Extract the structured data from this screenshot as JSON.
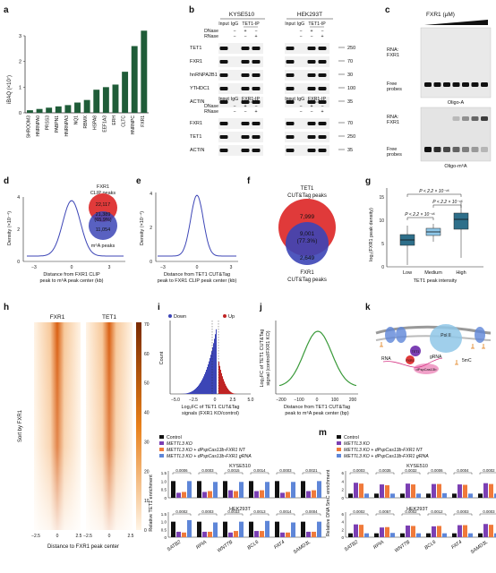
{
  "colors": {
    "green": "#1f5c38",
    "red": "#e03a3a",
    "blue": "#3c45b6",
    "purple": "#7b3fb3",
    "ctrl": "#111111",
    "sgnt": "#f07a3a",
    "gr": "#5e86d8",
    "teal": "#2e6f8a",
    "lgreen": "#3a9a3a",
    "heat": "#d96a10",
    "lblue": "#8fc7e8"
  },
  "panel_letters": [
    "a",
    "b",
    "c",
    "d",
    "e",
    "f",
    "g",
    "h",
    "i",
    "j",
    "k",
    "l",
    "m"
  ],
  "panel_a": {
    "ylabel": "iBAQ (×10⁷)",
    "chart_data": {
      "type": "bar",
      "categories": [
        "SHROOM3",
        "HNRNPA0",
        "PRSS3",
        "PABPN1",
        "HNRNPA3",
        "NQ1",
        "RBMX",
        "HSPA8",
        "EEF1A3",
        "ERH",
        "CLTC",
        "HNRNPC",
        "FXR1"
      ],
      "values": [
        0.1,
        0.15,
        0.2,
        0.25,
        0.3,
        0.4,
        0.5,
        0.9,
        1.0,
        1.1,
        1.6,
        2.6,
        3.2
      ],
      "ylim": [
        0,
        3
      ],
      "yticks": [
        0,
        1,
        2,
        3
      ]
    }
  },
  "panel_b": {
    "cells": [
      "KYSE510",
      "HEK293T"
    ],
    "top": {
      "lanes": [
        "Input",
        "IgG",
        "TET1-IP"
      ],
      "dnase": [
        "−",
        "+",
        "−"
      ],
      "rnase": [
        "−",
        "−",
        "+"
      ],
      "rows": [
        "TET1",
        "FXR1",
        "hnRNPA2B1",
        "YTHDC1",
        "ACTIN"
      ],
      "mw": [
        "250",
        "70",
        "30",
        "100",
        "35"
      ]
    },
    "bottom": {
      "lanes": [
        "Input",
        "IgG",
        "FXR1-IP"
      ],
      "dnase": [
        "−",
        "+",
        "−"
      ],
      "rnase": [
        "−",
        "−",
        "+"
      ],
      "rows": [
        "FXR1",
        "TET1",
        "ACTIN"
      ],
      "mw": [
        "70",
        "250",
        "35"
      ]
    },
    "labels": {
      "dnase": "DNase",
      "rnase": "RNase"
    }
  },
  "panel_c": {
    "title": "FXR1 (µM)",
    "rna_label": "RNA:",
    "fxr1": "FXR1",
    "free": "Free",
    "probes": "probes",
    "gel1": "Oligo-A",
    "gel2": "Oligo-m⁶A"
  },
  "panel_d": {
    "ylabel": "Density (×10⁻⁴)",
    "xlabel1": "Distance from FXR1 CLIP",
    "xlabel2": "peak to m⁶A peak center (kb)",
    "xticks": [
      "−3",
      "0",
      "3"
    ],
    "yticks": [
      "0",
      "2",
      "4"
    ],
    "venn_title1": "FXR1",
    "venn_title2": "CLIP peaks",
    "n_top": "22,117",
    "n_mid": "21,389",
    "pct_mid": "(65.9%)",
    "n_bot": "11,054",
    "venn_bottom": "m⁶A peaks"
  },
  "panel_e": {
    "ylabel": "Density (×10⁻⁴)",
    "xlabel1": "Distance from TET1 CUT&Tag",
    "xlabel2": "peak to FXR1 CLIP peak center (kb)",
    "xticks": [
      "−3",
      "0",
      "3"
    ],
    "yticks": [
      "0",
      "2",
      "4"
    ]
  },
  "panel_f": {
    "title1": "TET1",
    "title2": "CUT&Tag peaks",
    "n_top": "7,999",
    "n_mid": "9,001",
    "pct_mid": "(77.3%)",
    "n_bot": "2,649",
    "bottom1": "FXR1",
    "bottom2": "CUT&Tag peaks"
  },
  "panel_g": {
    "ylabel": "log₂(FXR1 peak density)",
    "xlabel": "TET1 peak intensity",
    "categories": [
      "Low",
      "Medium",
      "High"
    ],
    "pvals": [
      "P < 2.2 × 10⁻¹⁶",
      "P < 2.2 × 10⁻¹⁶",
      "P < 2.2 × 10⁻¹⁶"
    ],
    "yticks": [
      "0",
      "5",
      "10",
      "15"
    ]
  },
  "panel_h": {
    "col1": "FXR1",
    "col2": "TET1",
    "ylabel": "Sort by FXR1",
    "xlabel": "Distance to FXR1 peak center",
    "xticks": [
      "−2.5",
      "0",
      "2.5",
      "−2.5",
      "0",
      "2.5"
    ],
    "scale": [
      "70",
      "60",
      "50",
      "40",
      "30",
      "20",
      "10",
      "0"
    ]
  },
  "panel_i": {
    "legend_down": "Down",
    "legend_up": "Up",
    "ylabel": "Count",
    "xlabel1": "Log₂FC of TET1 CUT&Tag",
    "xlabel2": "signals (FXR1 KO/control)",
    "xticks": [
      "−5.0",
      "−2.5",
      "0",
      "2.5",
      "5.0"
    ]
  },
  "panel_j": {
    "ylabel1": "Log₂FC of TET1 CUT&Tag",
    "ylabel2": "signal (control/FXR1 KO)",
    "xlabel1": "Distance from TET1 CUT&Tag",
    "xlabel2": "peak to m⁶A peak center (bp)",
    "xticks": [
      "−200",
      "−100",
      "0",
      "100",
      "200"
    ]
  },
  "panel_k": {
    "pol": "Pol II",
    "grna": "gRNA",
    "rna": "RNA",
    "dcas": "dPspCas13b",
    "fxr1": "FXR1",
    "tet1": "TET1",
    "mc": "5mC"
  },
  "panel_l": {
    "legend": [
      "Control",
      "METTL3 KO",
      "METTL3 KO + dPspCas13b-FXR1 NT",
      "METTL3 KO + dPspCas13b-FXR1 gRNA"
    ],
    "ylabel": "Relative TET1 enrichment",
    "cell1": "KYSE510",
    "cell2": "HEK293T",
    "genes": [
      "SATB2",
      "RPIA",
      "WNT7B",
      "BCL6",
      "FAT4",
      "SAMD3L"
    ],
    "pvals_top": [
      "0.0006",
      "0.0003",
      "0.0015",
      "0.0014",
      "0.0003",
      "0.0021"
    ],
    "pvals_bot": [
      "0.0002",
      "0.0003",
      "0.0033",
      "0.0013",
      "0.0014",
      "0.0004"
    ],
    "chart_data": {
      "type": "bar",
      "series": [
        {
          "name": "Control",
          "top": [
            1.0,
            1.0,
            1.0,
            1.0,
            1.0,
            1.0
          ],
          "bot": [
            1.0,
            1.0,
            1.0,
            1.0,
            1.0,
            1.0
          ]
        },
        {
          "name": "METTL3 KO",
          "top": [
            0.3,
            0.35,
            0.45,
            0.4,
            0.3,
            0.4
          ],
          "bot": [
            0.35,
            0.35,
            0.3,
            0.4,
            0.3,
            0.35
          ]
        },
        {
          "name": "METTL3 KO + dPspCas13b-FXR1 NT",
          "top": [
            0.35,
            0.4,
            0.4,
            0.45,
            0.35,
            0.45
          ],
          "bot": [
            0.3,
            0.35,
            0.4,
            0.4,
            0.3,
            0.35
          ]
        },
        {
          "name": "METTL3 KO + dPspCas13b-FXR1 gRNA",
          "top": [
            1.0,
            0.95,
            0.95,
            0.95,
            0.95,
            1.0
          ],
          "bot": [
            1.1,
            0.95,
            1.0,
            1.05,
            0.95,
            1.0
          ]
        }
      ],
      "ylim": [
        0,
        1.5
      ],
      "yticks": [
        "0",
        "0.5",
        "1.0",
        "1.5"
      ]
    }
  },
  "panel_m": {
    "legend": [
      "Control",
      "METTL3 KO",
      "METTL3 KO + dPspCas13b-FXR1 NT",
      "METTL3 KO + dPspCas13b-FXR1 gRNA"
    ],
    "ylabel": "Relative DNA 5mC enrichment",
    "cell1": "KYSE510",
    "cell2": "HEK293T",
    "genes": [
      "SATB2",
      "RPIA",
      "WNT7B",
      "BCL6",
      "FAT4",
      "SAMD3L"
    ],
    "pvals_top": [
      "0.0003",
      "0.0035",
      "0.0032",
      "0.0006",
      "0.0004",
      "0.0002"
    ],
    "pvals_bot": [
      "0.0002",
      "0.0057",
      "0.0002",
      "0.0012",
      "0.0003",
      "0.0003"
    ],
    "chart_data": {
      "type": "bar",
      "series": [
        {
          "name": "Control",
          "top": [
            1.0,
            1.0,
            1.0,
            1.0,
            1.0,
            1.0
          ],
          "bot": [
            1.0,
            1.0,
            1.0,
            1.0,
            1.0,
            1.0
          ]
        },
        {
          "name": "METTL3 KO",
          "top": [
            3.6,
            3.2,
            3.4,
            3.3,
            3.2,
            3.5
          ],
          "bot": [
            3.3,
            2.5,
            3.0,
            2.8,
            3.1,
            3.4
          ]
        },
        {
          "name": "METTL3 KO + dPspCas13b-FXR1 NT",
          "top": [
            3.4,
            3.0,
            3.2,
            3.3,
            3.1,
            3.3
          ],
          "bot": [
            3.2,
            2.6,
            2.9,
            2.9,
            3.1,
            3.2
          ]
        },
        {
          "name": "METTL3 KO + dPspCas13b-FXR1 gRNA",
          "top": [
            1.0,
            1.0,
            1.0,
            1.1,
            1.0,
            1.0
          ],
          "bot": [
            1.0,
            1.1,
            1.0,
            1.0,
            1.0,
            1.0
          ]
        }
      ],
      "ylim": [
        0,
        6
      ],
      "yticks": [
        "0",
        "2",
        "4",
        "6"
      ]
    }
  }
}
